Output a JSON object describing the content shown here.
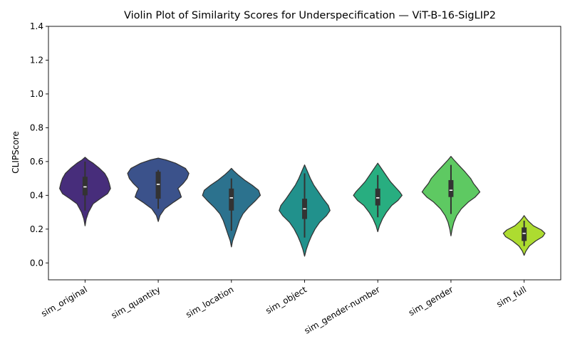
{
  "chart_data": {
    "type": "violin",
    "title": "Violin Plot of Similarity Scores for Underspecification — ViT-B-16-SigLIP2",
    "xlabel": "",
    "ylabel": "CLIPScore",
    "ylim": [
      -0.1,
      1.4
    ],
    "yticks": [
      0.0,
      0.2,
      0.4,
      0.6,
      0.8,
      1.0,
      1.2,
      1.4
    ],
    "ytick_labels": [
      "0.0",
      "0.2",
      "0.4",
      "0.6",
      "0.8",
      "1.0",
      "1.2",
      "1.4"
    ],
    "grid": false,
    "categories": [
      "sim_original",
      "sim_quantity",
      "sim_location",
      "sim_object",
      "sim_gender-number",
      "sim_gender",
      "sim_full"
    ],
    "series": [
      {
        "category": "sim_original",
        "color": "#472d7b",
        "profile": [
          [
            0.22,
            0
          ],
          [
            0.26,
            0.02
          ],
          [
            0.3,
            0.06
          ],
          [
            0.35,
            0.14
          ],
          [
            0.38,
            0.26
          ],
          [
            0.41,
            0.39
          ],
          [
            0.44,
            0.44
          ],
          [
            0.47,
            0.42
          ],
          [
            0.5,
            0.39
          ],
          [
            0.53,
            0.34
          ],
          [
            0.56,
            0.25
          ],
          [
            0.59,
            0.14
          ],
          [
            0.61,
            0.05
          ],
          [
            0.625,
            0
          ]
        ],
        "whisker": [
          0.31,
          0.6
        ],
        "q1": 0.4,
        "q3": 0.51,
        "median": 0.45
      },
      {
        "category": "sim_quantity",
        "color": "#3b528b",
        "profile": [
          [
            0.245,
            0
          ],
          [
            0.28,
            0.03
          ],
          [
            0.32,
            0.11
          ],
          [
            0.36,
            0.27
          ],
          [
            0.39,
            0.4
          ],
          [
            0.42,
            0.37
          ],
          [
            0.44,
            0.34
          ],
          [
            0.47,
            0.43
          ],
          [
            0.5,
            0.5
          ],
          [
            0.53,
            0.53
          ],
          [
            0.56,
            0.47
          ],
          [
            0.59,
            0.3
          ],
          [
            0.61,
            0.13
          ],
          [
            0.62,
            0
          ]
        ],
        "whisker": [
          0.32,
          0.55
        ],
        "q1": 0.38,
        "q3": 0.54,
        "median": 0.465
      },
      {
        "category": "sim_location",
        "color": "#2c728e",
        "profile": [
          [
            0.095,
            0
          ],
          [
            0.13,
            0.02
          ],
          [
            0.17,
            0.06
          ],
          [
            0.21,
            0.1
          ],
          [
            0.25,
            0.14
          ],
          [
            0.29,
            0.2
          ],
          [
            0.33,
            0.3
          ],
          [
            0.37,
            0.42
          ],
          [
            0.4,
            0.5
          ],
          [
            0.43,
            0.47
          ],
          [
            0.46,
            0.36
          ],
          [
            0.49,
            0.23
          ],
          [
            0.52,
            0.12
          ],
          [
            0.545,
            0.04
          ],
          [
            0.56,
            0
          ]
        ],
        "whisker": [
          0.19,
          0.5
        ],
        "q1": 0.31,
        "q3": 0.44,
        "median": 0.385
      },
      {
        "category": "sim_object",
        "color": "#21918c",
        "profile": [
          [
            0.04,
            0
          ],
          [
            0.08,
            0.03
          ],
          [
            0.12,
            0.07
          ],
          [
            0.16,
            0.12
          ],
          [
            0.2,
            0.18
          ],
          [
            0.24,
            0.26
          ],
          [
            0.28,
            0.38
          ],
          [
            0.31,
            0.44
          ],
          [
            0.34,
            0.41
          ],
          [
            0.38,
            0.32
          ],
          [
            0.42,
            0.24
          ],
          [
            0.46,
            0.16
          ],
          [
            0.5,
            0.1
          ],
          [
            0.54,
            0.05
          ],
          [
            0.58,
            0
          ]
        ],
        "whisker": [
          0.15,
          0.53
        ],
        "q1": 0.26,
        "q3": 0.38,
        "median": 0.32
      },
      {
        "category": "sim_gender-number",
        "color": "#28ae80",
        "profile": [
          [
            0.185,
            0
          ],
          [
            0.22,
            0.03
          ],
          [
            0.26,
            0.08
          ],
          [
            0.3,
            0.15
          ],
          [
            0.34,
            0.24
          ],
          [
            0.37,
            0.35
          ],
          [
            0.4,
            0.42
          ],
          [
            0.42,
            0.38
          ],
          [
            0.45,
            0.3
          ],
          [
            0.48,
            0.22
          ],
          [
            0.52,
            0.14
          ],
          [
            0.56,
            0.06
          ],
          [
            0.59,
            0
          ]
        ],
        "whisker": [
          0.27,
          0.52
        ],
        "q1": 0.34,
        "q3": 0.44,
        "median": 0.385
      },
      {
        "category": "sim_gender",
        "color": "#5ec962",
        "profile": [
          [
            0.16,
            0
          ],
          [
            0.2,
            0.02
          ],
          [
            0.24,
            0.05
          ],
          [
            0.28,
            0.1
          ],
          [
            0.32,
            0.18
          ],
          [
            0.36,
            0.3
          ],
          [
            0.39,
            0.42
          ],
          [
            0.42,
            0.5
          ],
          [
            0.44,
            0.46
          ],
          [
            0.47,
            0.39
          ],
          [
            0.5,
            0.34
          ],
          [
            0.54,
            0.24
          ],
          [
            0.58,
            0.13
          ],
          [
            0.61,
            0.05
          ],
          [
            0.63,
            0
          ]
        ],
        "whisker": [
          0.29,
          0.58
        ],
        "q1": 0.39,
        "q3": 0.49,
        "median": 0.43
      },
      {
        "category": "sim_full",
        "color": "#addc30",
        "profile": [
          [
            0.045,
            0
          ],
          [
            0.07,
            0.03
          ],
          [
            0.1,
            0.09
          ],
          [
            0.13,
            0.2
          ],
          [
            0.155,
            0.32
          ],
          [
            0.175,
            0.36
          ],
          [
            0.195,
            0.3
          ],
          [
            0.22,
            0.16
          ],
          [
            0.245,
            0.08
          ],
          [
            0.265,
            0.03
          ],
          [
            0.28,
            0
          ]
        ],
        "whisker": [
          0.1,
          0.25
        ],
        "q1": 0.13,
        "q3": 0.21,
        "median": 0.175
      }
    ]
  }
}
